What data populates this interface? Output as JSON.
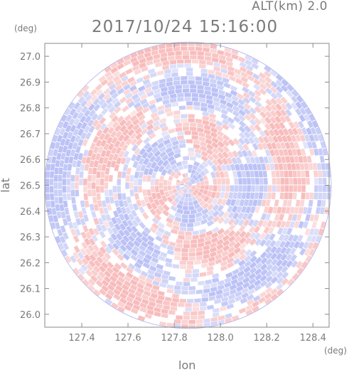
{
  "header": {
    "altitude_label": "ALT(km) 2.0",
    "timestamp": "2017/10/24 15:16:00"
  },
  "axes": {
    "x_unit": "(deg)",
    "y_unit": "(deg)",
    "xlabel": "lon",
    "ylabel": "lat"
  },
  "chart_data": {
    "type": "heatmap",
    "title": "2017/10/24 15:16:00",
    "xlabel": "lon",
    "ylabel": "lat",
    "x_unit": "deg",
    "y_unit": "deg",
    "xlim": [
      127.24,
      128.47
    ],
    "ylim": [
      25.95,
      27.05
    ],
    "x_ticks": [
      "127.4",
      "127.6",
      "127.8",
      "128.0",
      "128.2",
      "128.4"
    ],
    "y_ticks": [
      "26.0",
      "26.1",
      "26.2",
      "26.3",
      "26.4",
      "26.5",
      "26.6",
      "26.7",
      "26.8",
      "26.9",
      "27.0"
    ],
    "center": {
      "lon": 127.86,
      "lat": 26.5
    },
    "radius_deg_lat": 0.555,
    "description": "Radar PPI-style circular field with alternating light red (positive) and light blue (negative) patchy bands",
    "colors": {
      "positive": "#f8b8b8",
      "negative": "#b8bff5",
      "neutral": "#ffffff",
      "axis": "#8a8a8a"
    },
    "grid": false
  }
}
